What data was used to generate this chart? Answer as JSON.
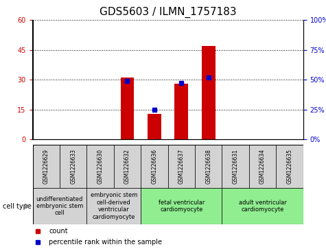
{
  "title": "GDS5603 / ILMN_1757183",
  "samples": [
    "GSM1226629",
    "GSM1226633",
    "GSM1226630",
    "GSM1226632",
    "GSM1226636",
    "GSM1226637",
    "GSM1226638",
    "GSM1226631",
    "GSM1226634",
    "GSM1226635"
  ],
  "counts": [
    0,
    0,
    0,
    31,
    13,
    28,
    47,
    0,
    0,
    0
  ],
  "percentiles": [
    null,
    null,
    null,
    49,
    25,
    47,
    52,
    null,
    null,
    null
  ],
  "ylim_left": [
    0,
    60
  ],
  "ylim_right": [
    0,
    100
  ],
  "yticks_left": [
    0,
    15,
    30,
    45,
    60
  ],
  "yticks_right": [
    0,
    25,
    50,
    75,
    100
  ],
  "bar_color": "#cc0000",
  "percentile_color": "#0000cc",
  "group_defs": [
    {
      "start": 0,
      "end": 1,
      "label": "undifferentiated\nembryonic stem\ncell",
      "color": "#d3d3d3"
    },
    {
      "start": 2,
      "end": 3,
      "label": "embryonic stem\ncell-derived\nventricular\ncardiomyocyte",
      "color": "#d3d3d3"
    },
    {
      "start": 4,
      "end": 6,
      "label": "fetal ventricular\ncardiomyocyte",
      "color": "#90ee90"
    },
    {
      "start": 7,
      "end": 9,
      "label": "adult ventricular\ncardiomyocyte",
      "color": "#90ee90"
    }
  ],
  "legend_count_label": "count",
  "legend_percentile_label": "percentile rank within the sample",
  "cell_type_label": "cell type",
  "sample_bg_color": "#d3d3d3",
  "title_fontsize": 11,
  "tick_fontsize": 7,
  "sample_fontsize": 5.5,
  "group_fontsize": 6,
  "legend_fontsize": 7
}
